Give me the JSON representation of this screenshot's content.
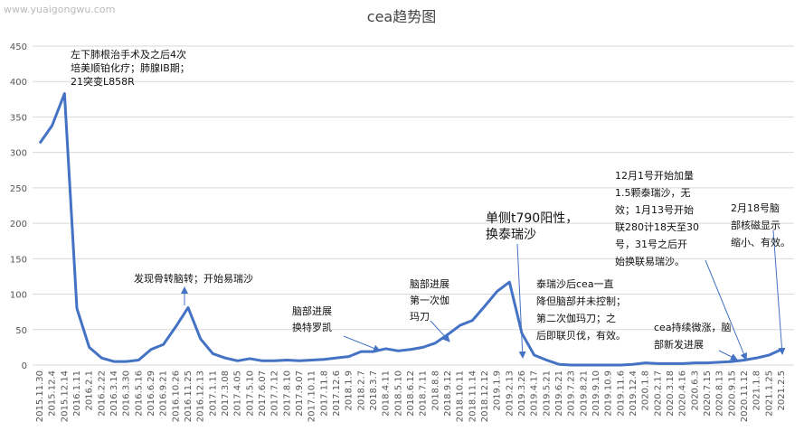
{
  "chart_data": {
    "type": "line",
    "title": "cea趋势图",
    "watermark": "www.yuaigongwu.com",
    "categories": [
      "2015.11.30",
      "2015.12.4",
      "2015.12.14",
      "2016.1.11",
      "2016.2.1",
      "2016.2.22",
      "2016.3.14",
      "2016.3.30",
      "2016.5.16",
      "2016.6.29",
      "2016.9.21",
      "2016.10.26",
      "2016.11.25",
      "2016.12.13",
      "2017.1.11",
      "2017.3.08",
      "2017.4.05",
      "2017.5.10",
      "2017.6.07",
      "2017.7.12",
      "2017.8.10",
      "2017.9.07",
      "2017.10.11",
      "2017.11.8",
      "2017.12.6",
      "2018.1.9",
      "2018.2.7",
      "2018.3.7",
      "2018.4.11",
      "2018.5.10",
      "2018.6.12",
      "2018.7.11",
      "2018.8.8",
      "2018.9.12",
      "2018.10.11",
      "2018.11.14",
      "2018.12.12",
      "2019.1.9",
      "2019.2.13",
      "2019.3.26",
      "2019.4.17",
      "2019.5.21",
      "2019.6.21",
      "2019.7.23",
      "2019.8.21",
      "2019.9.10",
      "2019.10.9",
      "2019.11.6",
      "2019.12.4",
      "2020.1.8",
      "2020.2.17",
      "2020.3.18",
      "2020.4.16",
      "2020.6.3",
      "2020.7.15",
      "2020.8.13",
      "2020.9.15",
      "2020.11.12",
      "2021.1.8",
      "2021.1.25",
      "2021.2.5"
    ],
    "series": [
      {
        "name": "cea",
        "color": "#4472c4",
        "values": [
          313,
          338,
          383,
          80,
          25,
          10,
          5,
          5,
          7,
          22,
          29,
          54,
          81,
          37,
          16,
          10,
          6,
          9,
          6,
          6,
          7,
          6,
          7,
          8,
          10,
          12,
          19,
          19,
          23,
          20,
          22,
          25,
          31,
          43,
          56,
          63,
          83,
          104,
          117,
          45,
          14,
          7,
          1,
          0,
          0,
          0,
          0,
          0,
          1,
          3,
          2,
          2,
          2,
          3,
          3,
          4,
          5,
          7,
          10,
          14,
          22
        ]
      }
    ],
    "ylim": [
      0,
      450
    ],
    "yticks": [
      0,
      50,
      100,
      150,
      200,
      250,
      300,
      350,
      400,
      450
    ],
    "grid": true,
    "annotations": [
      {
        "lines": [
          "左下肺根治手术及之后4次",
          "培美顺铂化疗；肺腺IB期；",
          "21突变L858R"
        ]
      },
      {
        "lines": [
          "发现骨转脑转；开始易瑞沙"
        ]
      },
      {
        "lines": [
          "脑部进展",
          "换特罗凯"
        ]
      },
      {
        "lines": [
          "脑部进展",
          "第一次伽",
          "玛刀"
        ]
      },
      {
        "lines": [
          "单侧t790阳性，",
          "换泰瑞沙"
        ]
      },
      {
        "lines": [
          "泰瑞沙后cea一直",
          "降但脑部并未控制；",
          "第二次伽玛刀；之",
          "后即联贝伐，有效。"
        ]
      },
      {
        "lines": [
          "cea持续微涨，脑",
          "部新发进展"
        ]
      },
      {
        "lines": [
          "12月1号开始加量",
          "1.5颗泰瑞沙，无",
          "效；1月13号开始",
          "联280计18天至30",
          "号，31号之后开",
          "始换联易瑞沙。"
        ]
      },
      {
        "lines": [
          "2月18号脑",
          "部核磁显示",
          "缩小、有效。"
        ]
      }
    ]
  }
}
